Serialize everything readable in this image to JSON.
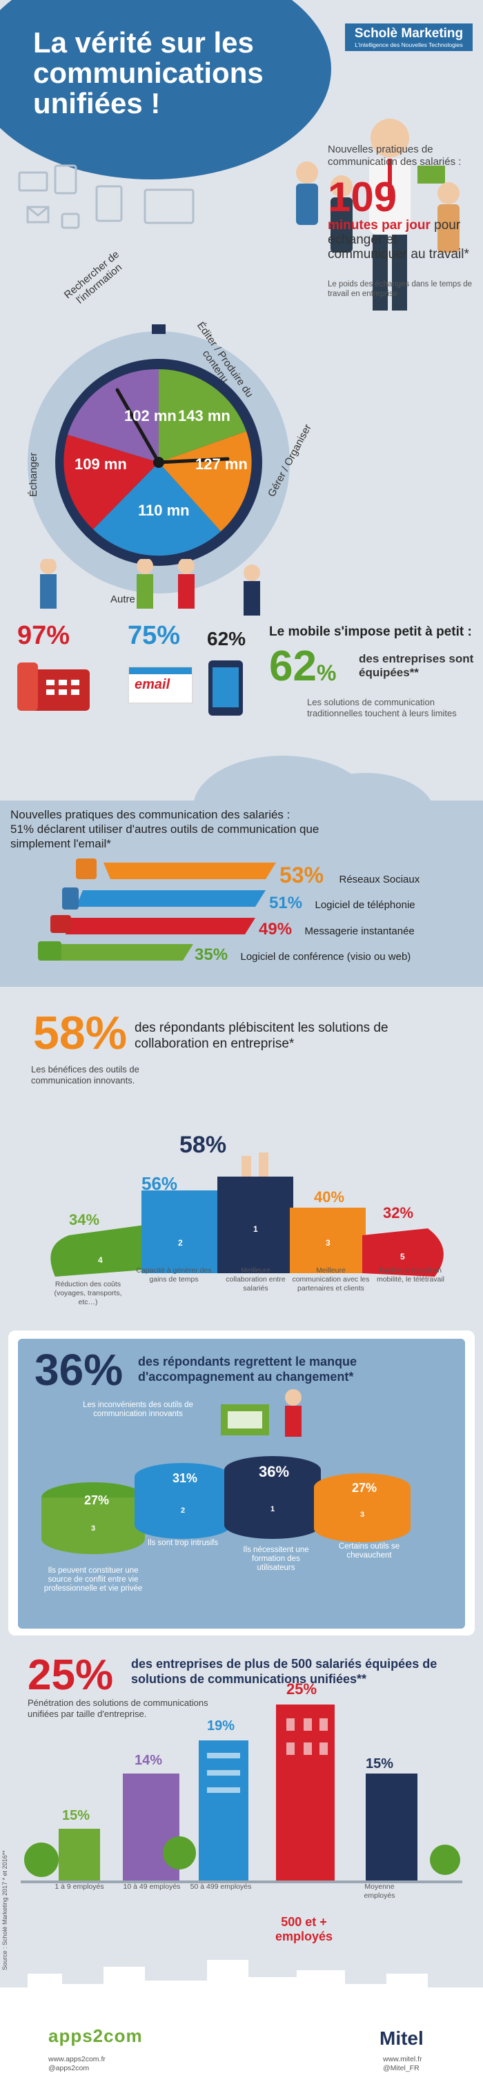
{
  "header": {
    "title": "La vérité sur les communications unifiées !",
    "brand_name": "Scholè Marketing",
    "brand_tagline": "L'intelligence des Nouvelles Technologies"
  },
  "clock": {
    "segments": [
      {
        "label": "Rechercher de l'information",
        "value": "102 mn",
        "color": "#8a64b0"
      },
      {
        "label": "Éditer / Produire du contenu",
        "value": "143 mn",
        "color": "#6eaa35"
      },
      {
        "label": "Gérer / Organiser",
        "value": "127 mn",
        "color": "#f08a1e"
      },
      {
        "label": "Autre",
        "value": "110 mn",
        "color": "#2a8fd0"
      },
      {
        "label": "Échanger",
        "value": "109 mn",
        "color": "#d4212b"
      }
    ],
    "unit": "mn"
  },
  "stat_109": {
    "intro": "Nouvelles pratiques de communication des salariés :",
    "value": "109",
    "emph": "minutes par jour",
    "rest": " pour échanger et communiquer au travail*",
    "note": "Le poids des échanges dans le temps de travail en entreprise"
  },
  "mobile": {
    "items": [
      {
        "value": "97%",
        "icon": "desk-phone-icon"
      },
      {
        "value": "75%",
        "icon": "email-icon",
        "icon_label": "email"
      },
      {
        "value": "62%",
        "icon": "smartphone-icon"
      }
    ],
    "headline": "Le mobile s'impose petit à petit :",
    "big": "62",
    "pct_sign": "%",
    "big_text": "des entreprises sont équipées**",
    "note": "Les solutions de communication traditionnelles touchent à leurs limites"
  },
  "tools": {
    "intro_line1": "Nouvelles pratiques des communication des salariés :",
    "intro_line2": "51% déclarent utiliser d'autres outils de communication que simplement l'email*",
    "bars": [
      {
        "value": "53%",
        "label": "Réseaux Sociaux",
        "color": "#f08a1e",
        "icon": "twitter-icon"
      },
      {
        "value": "51%",
        "label": "Logiciel de téléphonie",
        "color": "#2a8fd0",
        "icon": "phone-icon"
      },
      {
        "value": "49%",
        "label": "Messagerie instantanée",
        "color": "#d4212b",
        "icon": "chat-icon"
      },
      {
        "value": "35%",
        "label": "Logiciel de conférence (visio ou web)",
        "color": "#6eaa35",
        "icon": "video-icon"
      }
    ]
  },
  "collab": {
    "big": "58%",
    "text": "des répondants plébiscitent les solutions de collaboration en entreprise*",
    "sub": "Les bénéfices des outils de communication innovants.",
    "steps": [
      {
        "rank": "4",
        "value": "34%",
        "label": "Réduction des coûts (voyages, transports, etc…)",
        "color": "#6eaa35"
      },
      {
        "rank": "2",
        "value": "56%",
        "label": "Capacité à générer des gains de temps",
        "color": "#2a8fd0"
      },
      {
        "rank": "1",
        "value": "58%",
        "label": "Meilleure collaboration entre salariés",
        "color": "#22335a"
      },
      {
        "rank": "3",
        "value": "40%",
        "label": "Meilleure communication avec les partenaires et clients",
        "color": "#f08a1e"
      },
      {
        "rank": "5",
        "value": "32%",
        "label": "Facilite le travail en mobilité, le télétravail",
        "color": "#d4212b"
      }
    ]
  },
  "regret": {
    "big": "36%",
    "text": "des répondants regrettent le manque d'accompagnement au changement*",
    "sub": "Les inconvénients des outils de communication innovants",
    "items": [
      {
        "rank": "3",
        "value": "27%",
        "label": "Ils peuvent constituer une source de conflit entre vie professionnelle et vie privée",
        "color": "#6eaa35"
      },
      {
        "rank": "2",
        "value": "31%",
        "label": "Ils sont trop intrusifs",
        "color": "#2a8fd0"
      },
      {
        "rank": "1",
        "value": "36%",
        "label": "Ils nécessitent une formation des utilisateurs",
        "color": "#22335a"
      },
      {
        "rank": "3",
        "value": "27%",
        "label": "Certains outils se chevauchent",
        "color": "#f08a1e"
      }
    ]
  },
  "companies": {
    "big": "25%",
    "text": "des entreprises de plus de 500 salariés équipées de solutions de communications unifiées**",
    "sub": "Pénétration des solutions de communications unifiées par taille d'entreprise.",
    "bars": [
      {
        "value": "15%",
        "label": "1 à 9 employés",
        "color": "#6eaa35"
      },
      {
        "value": "14%",
        "label": "10 à 49 employés",
        "color": "#8a64b0"
      },
      {
        "value": "19%",
        "label": "50 à 499 employés",
        "color": "#2a8fd0"
      },
      {
        "value": "25%",
        "label": "500 et + employés",
        "color": "#d4212b"
      },
      {
        "value": "15%",
        "label": "Moyenne employés",
        "color": "#22335a"
      }
    ]
  },
  "source": "Source : Scholè Marketing 2017 * et 2016**",
  "footer": {
    "left_logo": "apps2com",
    "left_url": "www.apps2com.fr",
    "left_handle": "@apps2com",
    "right_logo": "Mitel",
    "right_url": "www.mitel.fr",
    "right_handle": "@Mitel_FR"
  }
}
